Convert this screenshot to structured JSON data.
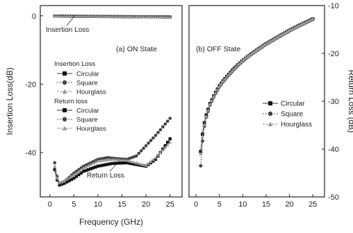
{
  "chart_data": [
    {
      "type": "line",
      "panel_label": "(a)  ON State",
      "xlabel": "Frequency (GHz)",
      "ylabel": "Insertion Loss(dB)",
      "xlim": [
        -2,
        27.5
      ],
      "ylim": [
        -53,
        3
      ],
      "xticks": [
        0,
        5,
        10,
        15,
        20,
        25
      ],
      "yticks": [
        0,
        -20,
        -40
      ],
      "grid": false,
      "annotations": [
        "Insertion Loss",
        "Return Loss"
      ],
      "legend": {
        "placement": "left",
        "groups": [
          {
            "title": "Insertion Loss",
            "entries": [
              "Circular",
              "Square",
              "Hourglass"
            ]
          },
          {
            "title": "Return loss",
            "entries": [
              "Circular",
              "Square",
              "Hourglass"
            ]
          }
        ]
      },
      "series": [
        {
          "name": "Circular",
          "group": "Insertion Loss",
          "x": [
            1,
            5,
            10,
            15,
            20,
            25
          ],
          "y": [
            -0.1,
            -0.15,
            -0.2,
            -0.25,
            -0.3,
            -0.35
          ]
        },
        {
          "name": "Square",
          "group": "Insertion Loss",
          "x": [
            1,
            5,
            10,
            15,
            20,
            25
          ],
          "y": [
            -0.1,
            -0.15,
            -0.2,
            -0.25,
            -0.3,
            -0.35
          ]
        },
        {
          "name": "Hourglass",
          "group": "Insertion Loss",
          "x": [
            1,
            5,
            10,
            15,
            20,
            25
          ],
          "y": [
            -0.1,
            -0.15,
            -0.2,
            -0.25,
            -0.3,
            -0.35
          ]
        },
        {
          "name": "Circular",
          "group": "Return loss",
          "x": [
            1,
            1.5,
            2,
            3,
            5,
            7,
            10,
            13,
            16,
            18,
            20,
            22,
            24,
            25
          ],
          "y": [
            -45,
            -48,
            -49.5,
            -49,
            -47.5,
            -45.5,
            -44,
            -43.2,
            -43,
            -43.5,
            -44,
            -42,
            -38,
            -36
          ]
        },
        {
          "name": "Square",
          "group": "Return loss",
          "x": [
            1,
            1.5,
            2,
            3,
            5,
            7,
            10,
            12,
            14,
            16,
            18,
            20,
            22,
            25
          ],
          "y": [
            -43,
            -47,
            -49,
            -48.5,
            -46,
            -44,
            -42,
            -41.5,
            -41.8,
            -42,
            -41,
            -38,
            -35,
            -30
          ]
        },
        {
          "name": "Hourglass",
          "group": "Return loss",
          "x": [
            1,
            1.5,
            2,
            3,
            5,
            7,
            10,
            13,
            16,
            18,
            20,
            22,
            24,
            25
          ],
          "y": [
            -44,
            -47.5,
            -48.8,
            -48.3,
            -46.5,
            -44.5,
            -42.5,
            -42,
            -42.3,
            -43,
            -43.8,
            -41.5,
            -38.5,
            -37
          ]
        }
      ]
    },
    {
      "type": "line",
      "panel_label": "(b)  OFF State",
      "xlabel": "",
      "ylabel": "Return Loss (dB)",
      "xlim": [
        -1.5,
        27.5
      ],
      "ylim": [
        -50,
        -10
      ],
      "xticks": [
        0,
        5,
        10,
        15,
        20,
        25
      ],
      "yticks": [
        -10,
        -20,
        -30,
        -40,
        -50
      ],
      "grid": false,
      "legend": {
        "placement": "center-right",
        "entries": [
          "Circular",
          "Square",
          "Hourglass"
        ]
      },
      "series": [
        {
          "name": "Circular",
          "x": [
            1,
            1.5,
            2,
            3,
            4,
            5,
            6,
            8,
            10,
            12,
            15,
            18,
            20,
            22,
            25
          ],
          "y": [
            -40.5,
            -36,
            -33.5,
            -30.5,
            -28.5,
            -26.8,
            -25.5,
            -23.3,
            -21.5,
            -20,
            -18,
            -16.3,
            -15.2,
            -14.2,
            -12.8
          ]
        },
        {
          "name": "Square",
          "x": [
            1,
            1.5,
            2,
            3,
            4,
            5,
            6,
            8,
            10,
            12,
            15,
            18,
            20,
            22,
            25
          ],
          "y": [
            -43.5,
            -37,
            -34,
            -30.8,
            -28.7,
            -27,
            -25.7,
            -23.5,
            -21.6,
            -20.1,
            -18.1,
            -16.4,
            -15.3,
            -14.3,
            -12.9
          ]
        },
        {
          "name": "Hourglass",
          "x": [
            1,
            1.5,
            2,
            3,
            4,
            5,
            6,
            8,
            10,
            12,
            15,
            18,
            20,
            22,
            25
          ],
          "y": [
            -41,
            -36.5,
            -33.8,
            -30.6,
            -28.6,
            -26.9,
            -25.6,
            -23.4,
            -21.5,
            -20,
            -18,
            -16.3,
            -15.2,
            -14.2,
            -12.8
          ]
        }
      ]
    }
  ]
}
